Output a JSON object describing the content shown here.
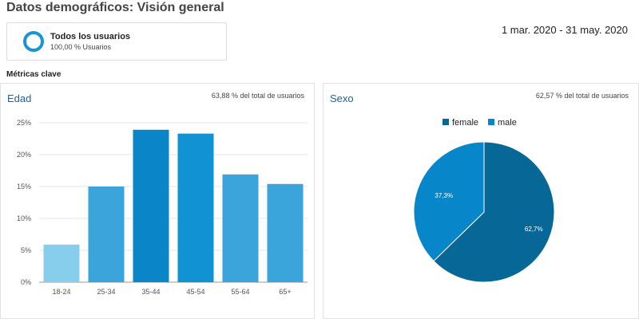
{
  "page": {
    "title": "Datos demográficos: Visión general"
  },
  "segment": {
    "name": "Todos los usuarios",
    "subtitle": "100,00 % Usuarios"
  },
  "date_range": "1 mar. 2020 - 31 may. 2020",
  "key_metrics_label": "Métricas clave",
  "age_panel": {
    "title": "Edad",
    "note": "63,88 % del total de usuarios"
  },
  "gender_panel": {
    "title": "Sexo",
    "note": "62,57 % del total de usuarios"
  },
  "colors": {
    "bar_light": "#87ceec",
    "bar_mid": "#3aa4db",
    "bar_dark": "#0a85c8",
    "bar_darker": "#1192d2",
    "female": "#076797",
    "male": "#0787c9",
    "ring": "#1a94d6",
    "panel_title": "#1565a8"
  },
  "chart_data": [
    {
      "type": "bar",
      "categories": [
        "18-24",
        "25-34",
        "35-44",
        "45-54",
        "55-64",
        "65+"
      ],
      "values": [
        5.9,
        15.0,
        23.9,
        23.3,
        16.9,
        15.4
      ],
      "bar_colors": [
        "#87ceec",
        "#3aa4db",
        "#0a85c8",
        "#1192d2",
        "#3aa4db",
        "#3aa4db"
      ],
      "yticks": [
        "0%",
        "5%",
        "10%",
        "15%",
        "20%",
        "25%"
      ],
      "ylim": [
        0,
        25
      ],
      "grid": true
    },
    {
      "type": "pie",
      "labels": [
        "female",
        "male"
      ],
      "values": [
        62.7,
        37.3
      ],
      "value_labels": [
        "62,7%",
        "37,3%"
      ],
      "colors": [
        "#076797",
        "#0787c9"
      ],
      "legend_position": "top-center"
    }
  ]
}
